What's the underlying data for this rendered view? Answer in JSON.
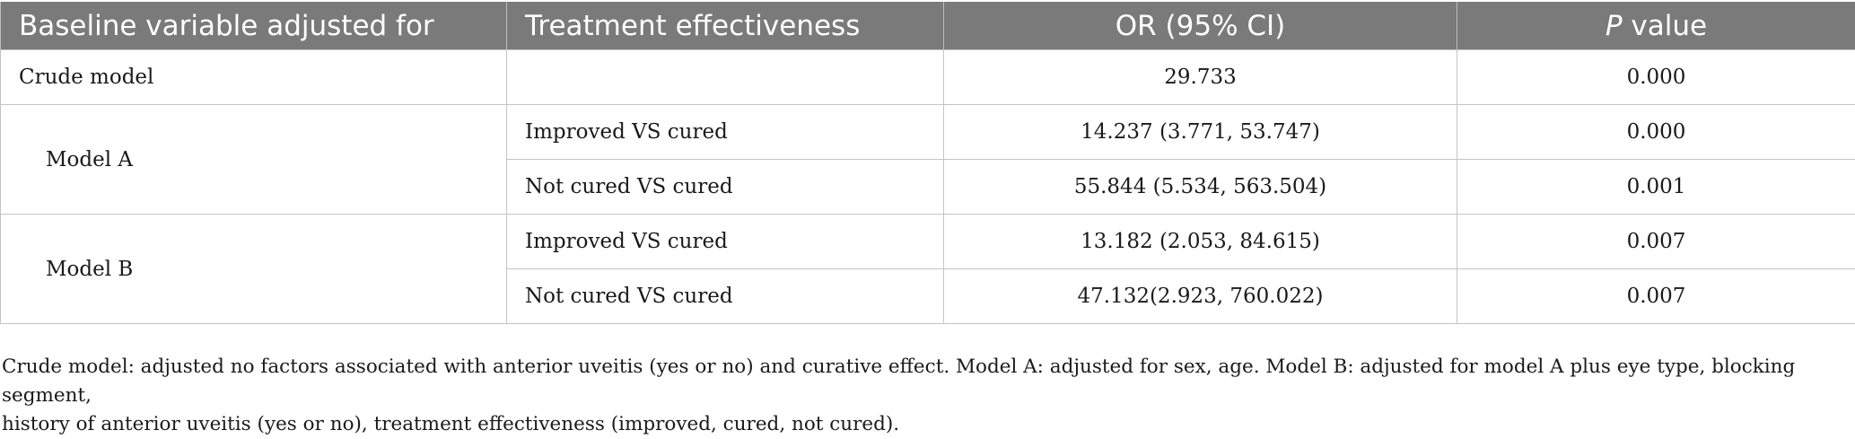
{
  "header": {
    "col1": "Baseline variable adjusted for",
    "col2": "Treatment effectiveness",
    "col3": "OR (95% CI)",
    "col4_italic": "P",
    "col4_rest": " value"
  },
  "rows": {
    "crude": {
      "label": "Crude model",
      "effect": "",
      "or": "29.733",
      "p": "0.000"
    },
    "modelA": {
      "label": "Model A",
      "r1": {
        "effect": "Improved VS cured",
        "or": "14.237 (3.771, 53.747)",
        "p": "0.000"
      },
      "r2": {
        "effect": "Not cured VS cured",
        "or": "55.844 (5.534, 563.504)",
        "p": "0.001"
      }
    },
    "modelB": {
      "label": "Model B",
      "r1": {
        "effect": "Improved VS cured",
        "or": "13.182 (2.053, 84.615)",
        "p": "0.007"
      },
      "r2": {
        "effect": "Not cured VS cured",
        "or": "47.132(2.923, 760.022)",
        "p": "0.007"
      }
    }
  },
  "footnote": {
    "line1": "Crude model: adjusted no factors associated with anterior uveitis (yes or no) and curative effect. Model A: adjusted for sex, age. Model B: adjusted for model A plus eye type, blocking segment,",
    "line2": "history of anterior uveitis (yes or no), treatment effectiveness (improved, cured, not cured)."
  }
}
